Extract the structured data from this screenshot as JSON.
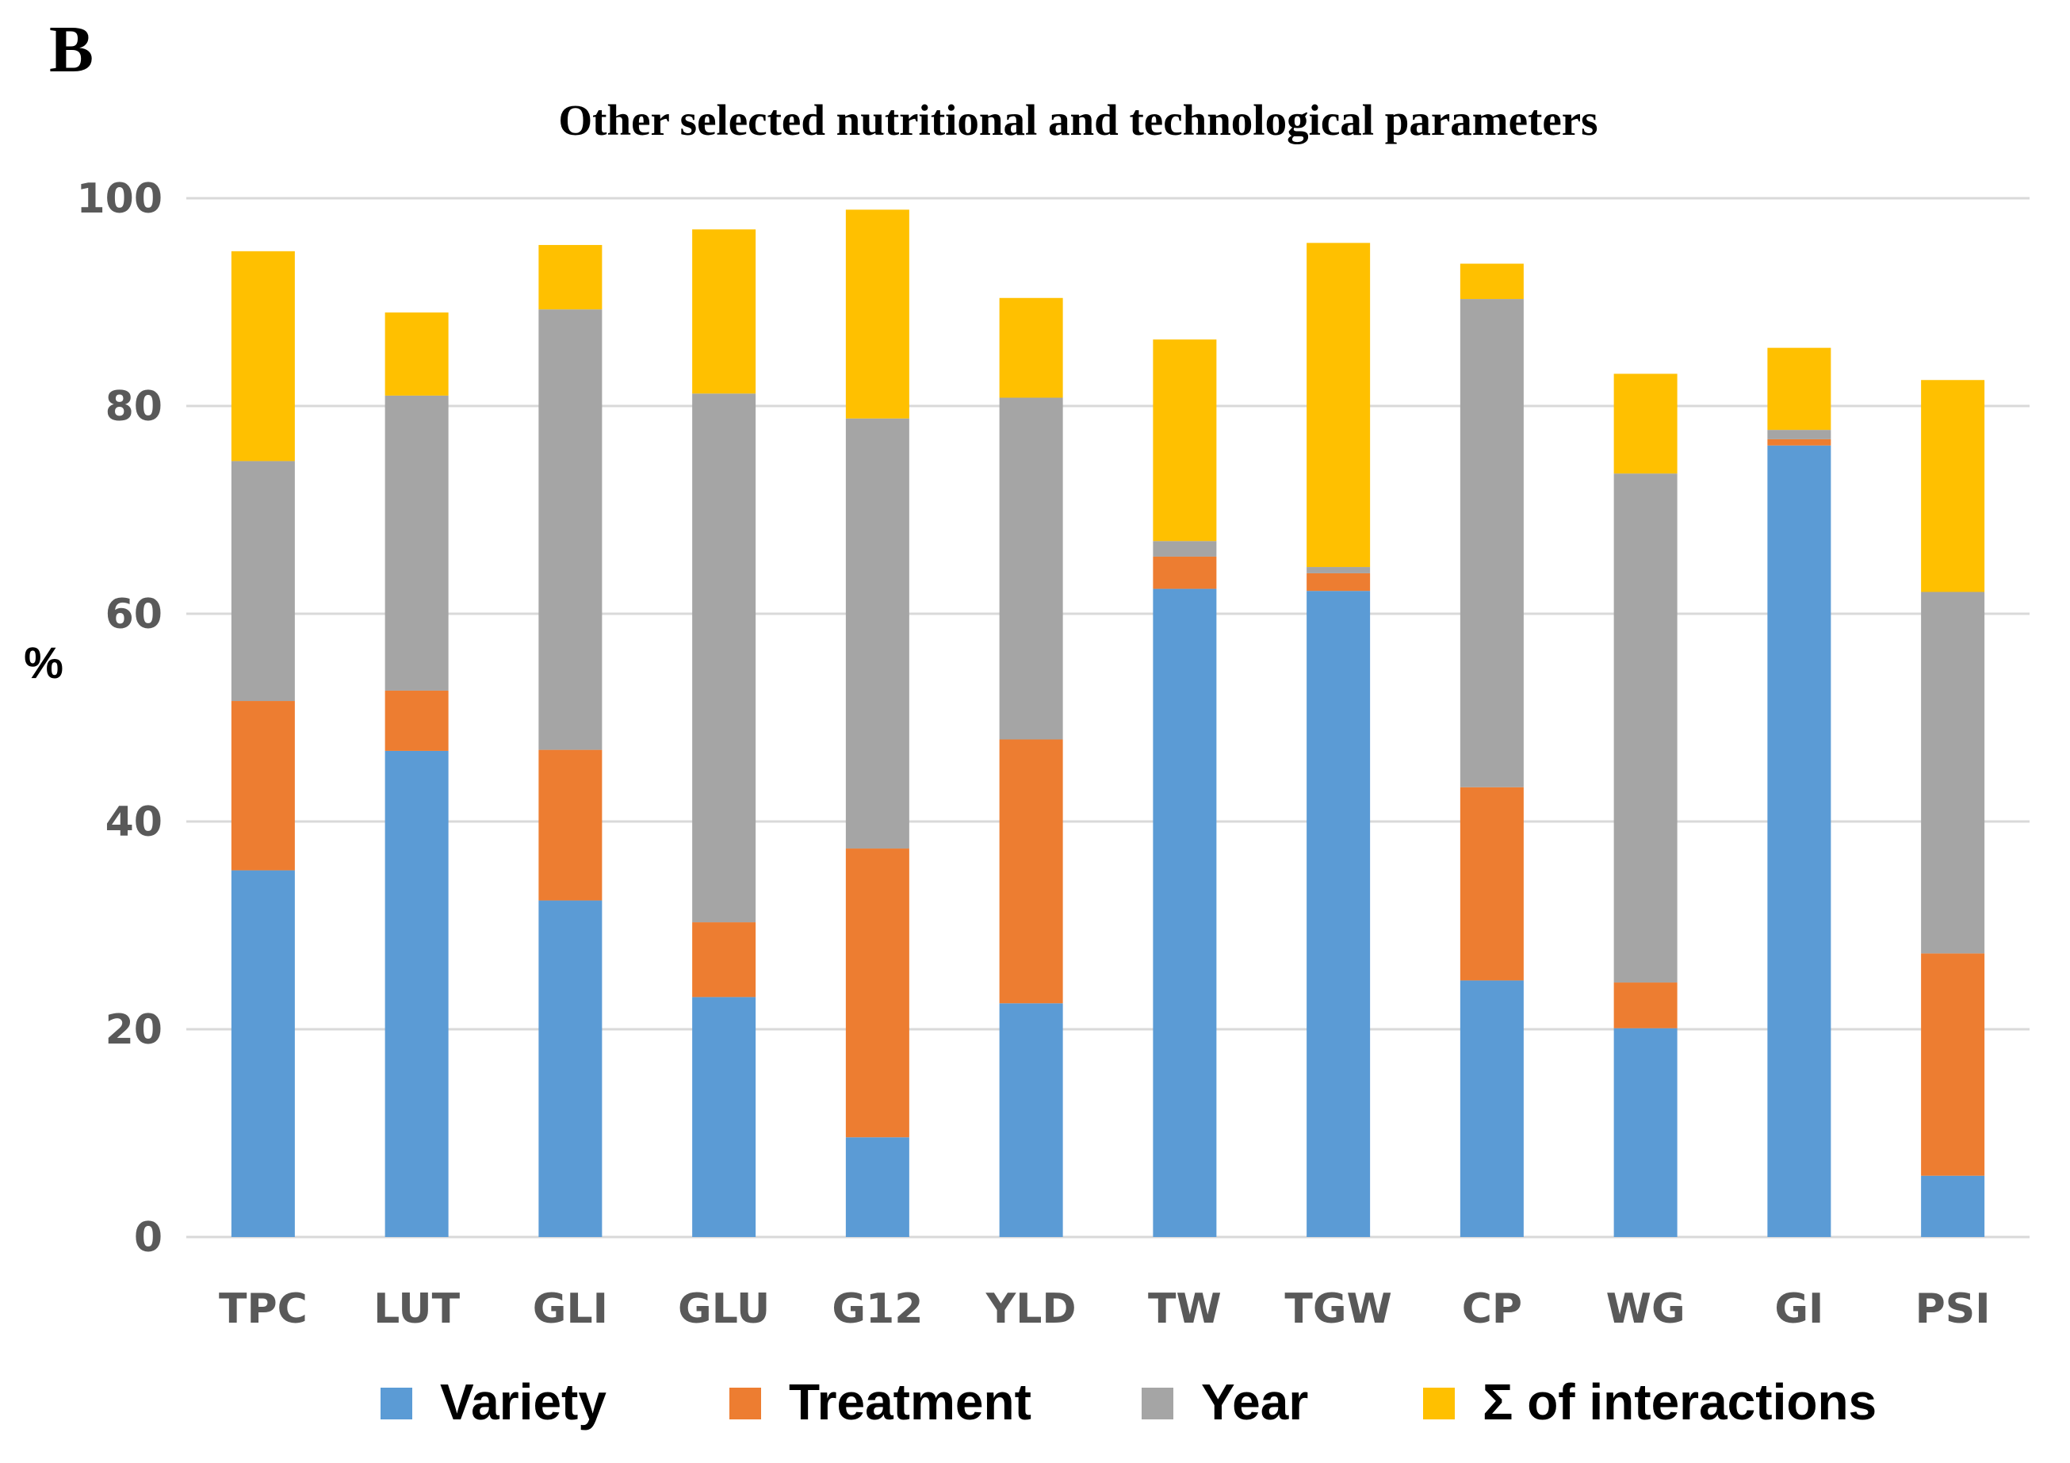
{
  "panel_label": "B",
  "chart_data": {
    "type": "bar",
    "stacked": true,
    "title": "Other selected nutritional and technological parameters",
    "xlabel": "",
    "ylabel": "%",
    "ylim": [
      0,
      100
    ],
    "yticks": [
      0,
      20,
      40,
      60,
      80,
      100
    ],
    "ytick_labels": [
      "0",
      "20",
      "40",
      "60",
      "80",
      "100"
    ],
    "grid": true,
    "legend_position": "bottom",
    "categories": [
      "TPC",
      "LUT",
      "GLI",
      "GLU",
      "G12",
      "YLD",
      "TW",
      "TGW",
      "CP",
      "WG",
      "GI",
      "PSI"
    ],
    "series": [
      {
        "name": "Variety",
        "color": "#5b9bd5",
        "values": [
          35.3,
          46.8,
          32.4,
          23.1,
          9.6,
          22.5,
          62.4,
          62.2,
          24.7,
          20.1,
          76.2,
          5.9
        ]
      },
      {
        "name": "Treatment",
        "color": "#ed7d31",
        "values": [
          16.3,
          5.8,
          14.5,
          7.2,
          27.8,
          25.4,
          3.1,
          1.7,
          18.6,
          4.4,
          0.6,
          21.4
        ]
      },
      {
        "name": "Year",
        "color": "#a5a5a5",
        "values": [
          23.1,
          28.4,
          42.4,
          50.9,
          41.4,
          32.9,
          1.5,
          0.6,
          47.0,
          49.0,
          0.9,
          34.8
        ]
      },
      {
        "name": "Σ of interactions",
        "color": "#ffc000",
        "values": [
          20.2,
          8.0,
          6.2,
          15.8,
          20.1,
          9.6,
          19.4,
          31.2,
          3.4,
          9.6,
          7.9,
          20.4
        ]
      }
    ]
  }
}
